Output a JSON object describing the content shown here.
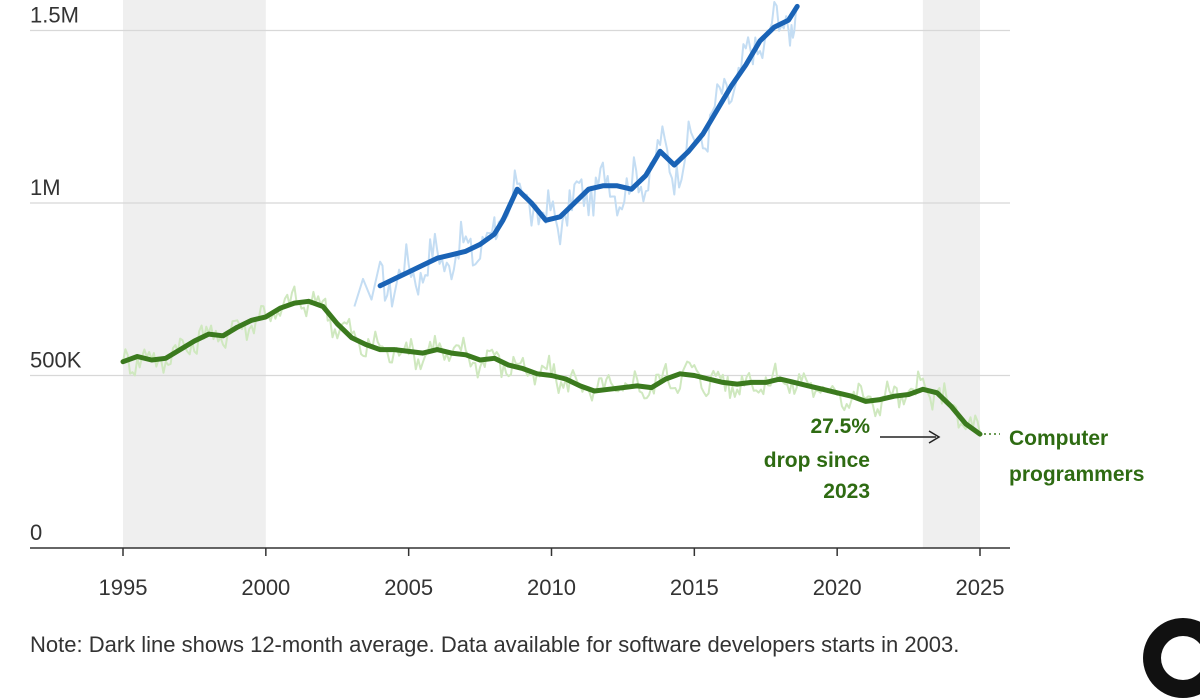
{
  "chart_data": {
    "type": "line",
    "ylim": [
      0,
      1550000
    ],
    "xlim": [
      1992.2,
      2026.2
    ],
    "y_ticks": [
      {
        "value": 1500000,
        "label": "1.5M"
      },
      {
        "value": 1000000,
        "label": "1M"
      },
      {
        "value": 500000,
        "label": "500K"
      },
      {
        "value": 0,
        "label": "0"
      }
    ],
    "x_ticks": [
      {
        "value": 1995,
        "label": "1995"
      },
      {
        "value": 2000,
        "label": "2000"
      },
      {
        "value": 2005,
        "label": "2005"
      },
      {
        "value": 2010,
        "label": "2010"
      },
      {
        "value": 2015,
        "label": "2015"
      },
      {
        "value": 2020,
        "label": "2020"
      },
      {
        "value": 2025,
        "label": "2025"
      }
    ],
    "shaded_periods": [
      [
        1995,
        2000
      ],
      [
        2023,
        2025
      ]
    ],
    "series": [
      {
        "name": "",
        "color": "#1a63b6",
        "raw_color": "#c4ddf3",
        "points": [
          [
            2004.0,
            760000
          ],
          [
            2004.5,
            780000
          ],
          [
            2005.0,
            800000
          ],
          [
            2005.5,
            820000
          ],
          [
            2006.0,
            840000
          ],
          [
            2006.5,
            850000
          ],
          [
            2007.0,
            860000
          ],
          [
            2007.5,
            880000
          ],
          [
            2008.0,
            910000
          ],
          [
            2008.3,
            950000
          ],
          [
            2008.8,
            1040000
          ],
          [
            2009.3,
            1000000
          ],
          [
            2009.8,
            950000
          ],
          [
            2010.3,
            960000
          ],
          [
            2010.8,
            1000000
          ],
          [
            2011.3,
            1040000
          ],
          [
            2011.8,
            1050000
          ],
          [
            2012.3,
            1050000
          ],
          [
            2012.8,
            1040000
          ],
          [
            2013.3,
            1080000
          ],
          [
            2013.8,
            1150000
          ],
          [
            2014.3,
            1110000
          ],
          [
            2014.8,
            1150000
          ],
          [
            2015.3,
            1200000
          ],
          [
            2015.8,
            1270000
          ],
          [
            2016.3,
            1340000
          ],
          [
            2016.8,
            1400000
          ],
          [
            2017.3,
            1470000
          ],
          [
            2017.8,
            1510000
          ],
          [
            2018.3,
            1530000
          ],
          [
            2018.6,
            1570000
          ]
        ]
      },
      {
        "name": "Computer programmers",
        "color": "#3b7a1e",
        "raw_color": "#cfe8bf",
        "points": [
          [
            1995.0,
            540000
          ],
          [
            1995.5,
            555000
          ],
          [
            1996.0,
            545000
          ],
          [
            1996.5,
            550000
          ],
          [
            1997.0,
            575000
          ],
          [
            1997.5,
            600000
          ],
          [
            1998.0,
            620000
          ],
          [
            1998.5,
            615000
          ],
          [
            1999.0,
            640000
          ],
          [
            1999.5,
            660000
          ],
          [
            2000.0,
            670000
          ],
          [
            2000.5,
            695000
          ],
          [
            2001.0,
            710000
          ],
          [
            2001.5,
            715000
          ],
          [
            2002.0,
            700000
          ],
          [
            2002.5,
            650000
          ],
          [
            2003.0,
            610000
          ],
          [
            2003.5,
            590000
          ],
          [
            2004.0,
            575000
          ],
          [
            2004.5,
            575000
          ],
          [
            2005.0,
            570000
          ],
          [
            2005.5,
            565000
          ],
          [
            2006.0,
            575000
          ],
          [
            2006.5,
            565000
          ],
          [
            2007.0,
            560000
          ],
          [
            2007.5,
            545000
          ],
          [
            2008.0,
            550000
          ],
          [
            2008.5,
            530000
          ],
          [
            2009.0,
            520000
          ],
          [
            2009.5,
            505000
          ],
          [
            2010.0,
            500000
          ],
          [
            2010.5,
            490000
          ],
          [
            2011.0,
            470000
          ],
          [
            2011.5,
            455000
          ],
          [
            2012.0,
            460000
          ],
          [
            2012.5,
            465000
          ],
          [
            2013.0,
            470000
          ],
          [
            2013.5,
            465000
          ],
          [
            2014.0,
            490000
          ],
          [
            2014.5,
            505000
          ],
          [
            2015.0,
            500000
          ],
          [
            2015.5,
            490000
          ],
          [
            2016.0,
            480000
          ],
          [
            2016.5,
            475000
          ],
          [
            2017.0,
            480000
          ],
          [
            2017.5,
            480000
          ],
          [
            2018.0,
            490000
          ],
          [
            2018.5,
            480000
          ],
          [
            2019.0,
            470000
          ],
          [
            2019.5,
            460000
          ],
          [
            2020.0,
            450000
          ],
          [
            2020.5,
            440000
          ],
          [
            2021.0,
            425000
          ],
          [
            2021.5,
            430000
          ],
          [
            2022.0,
            440000
          ],
          [
            2022.5,
            445000
          ],
          [
            2023.0,
            460000
          ],
          [
            2023.5,
            450000
          ],
          [
            2024.0,
            410000
          ],
          [
            2024.5,
            360000
          ],
          [
            2025.0,
            330000
          ]
        ]
      }
    ]
  },
  "annotations": {
    "drop": [
      "27.5%",
      "drop since",
      "2023"
    ],
    "series_label": [
      "Computer",
      "programmers"
    ]
  },
  "note": "Note: Dark line shows 12-month average. Data available for software developers starts in 2003."
}
